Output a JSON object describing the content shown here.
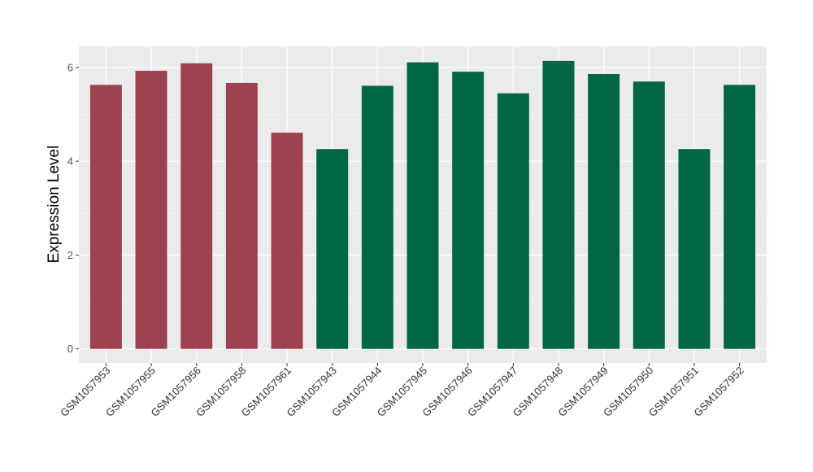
{
  "chart_data": {
    "type": "bar",
    "title": "",
    "xlabel": "",
    "ylabel": "Expression Level",
    "ylim": [
      -0.3,
      6.45
    ],
    "yticks": [
      0,
      2,
      4,
      6
    ],
    "grid": true,
    "panel_background": "#ebebeb",
    "categories": [
      "GSM1057953",
      "GSM1057955",
      "GSM1057956",
      "GSM1057958",
      "GSM1057961",
      "GSM1057943",
      "GSM1057944",
      "GSM1057945",
      "GSM1057946",
      "GSM1057947",
      "GSM1057948",
      "GSM1057949",
      "GSM1057950",
      "GSM1057951",
      "GSM1057952"
    ],
    "values": [
      5.63,
      5.93,
      6.09,
      5.67,
      4.61,
      4.26,
      5.61,
      6.11,
      5.91,
      5.45,
      6.14,
      5.86,
      5.7,
      4.26,
      5.63
    ],
    "bar_colors": [
      "#9e4250",
      "#9e4250",
      "#9e4250",
      "#9e4250",
      "#9e4250",
      "#006644",
      "#006644",
      "#006644",
      "#006644",
      "#006644",
      "#006644",
      "#006644",
      "#006644",
      "#006644",
      "#006644"
    ]
  }
}
